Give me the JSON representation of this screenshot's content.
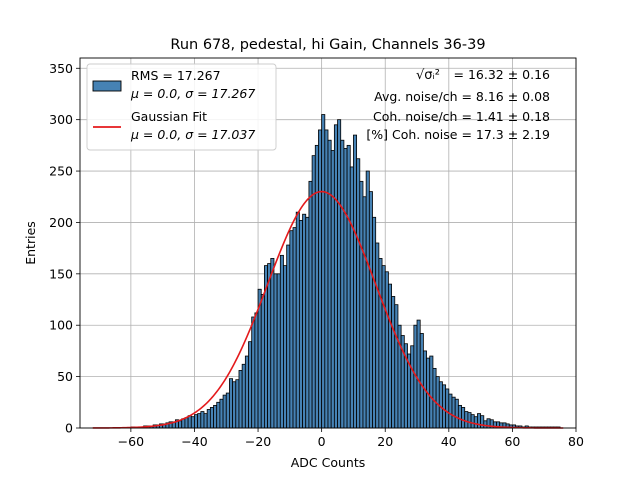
{
  "chart_data": {
    "type": "bar",
    "title": "Run 678, pedestal, hi Gain, Channels 36-39",
    "xlabel": "ADC Counts",
    "ylabel": "Entries",
    "xlim": [
      -76,
      80
    ],
    "ylim": [
      0,
      360
    ],
    "xticks": [
      -60,
      -40,
      -20,
      0,
      20,
      40,
      60,
      80
    ],
    "yticks": [
      0,
      50,
      100,
      150,
      200,
      250,
      300,
      350
    ],
    "grid": true,
    "legend_position": "top-left",
    "bin_start": -72,
    "bin_width": 1,
    "histogram_color": "#4682b4",
    "histogram_edge": "#000000",
    "fit_color": "#e41a1c",
    "histogram_counts": [
      0,
      0,
      0,
      0,
      0,
      0,
      0,
      0,
      0,
      0,
      0,
      0,
      1,
      1,
      1,
      1,
      2,
      2,
      2,
      3,
      3,
      4,
      4,
      5,
      6,
      6,
      8,
      7,
      9,
      10,
      12,
      11,
      13,
      14,
      16,
      14,
      18,
      20,
      22,
      25,
      28,
      32,
      34,
      48,
      45,
      47,
      56,
      62,
      70,
      84,
      108,
      112,
      135,
      130,
      158,
      160,
      165,
      150,
      150,
      168,
      158,
      178,
      192,
      195,
      210,
      202,
      208,
      205,
      240,
      265,
      275,
      290,
      305,
      290,
      280,
      270,
      295,
      300,
      280,
      272,
      275,
      254,
      285,
      262,
      240,
      225,
      250,
      230,
      205,
      180,
      165,
      158,
      152,
      140,
      128,
      120,
      100,
      90,
      82,
      72,
      80,
      100,
      105,
      92,
      75,
      68,
      70,
      58,
      50,
      45,
      42,
      38,
      33,
      30,
      28,
      22,
      20,
      16,
      15,
      13,
      11,
      14,
      12,
      7,
      9,
      8,
      6,
      6,
      5,
      5,
      4,
      3,
      3,
      2,
      2,
      1,
      2,
      1,
      1,
      1,
      1,
      1,
      1,
      1,
      1,
      1,
      1,
      0,
      0
    ],
    "series": [
      {
        "name": "RMS = 17.267",
        "name2": "μ = 0.0, σ = 17.267",
        "kind": "histogram"
      },
      {
        "name": "Gaussian Fit",
        "name2": "μ = 0.0, σ = 17.037",
        "kind": "fit",
        "mu": 0.0,
        "sigma": 17.037,
        "peak": 230
      }
    ],
    "annotations": [
      {
        "lhs": "√σᵢ²",
        "rhs": " = 16.32 ± 0.16"
      },
      {
        "text": "Avg. noise/ch = 8.16 ± 0.08"
      },
      {
        "text": "Coh. noise/ch = 1.41 ± 0.18"
      },
      {
        "text": "[%] Coh. noise = 17.3 ± 2.19"
      }
    ]
  }
}
